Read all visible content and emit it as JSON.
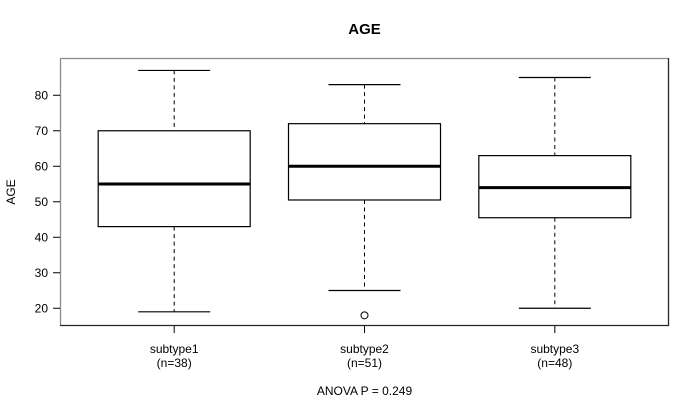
{
  "title": "AGE",
  "colors": {
    "background": "#ffffff",
    "frame_top_left": "#8a8a8a",
    "frame_bottom_right": "#262626",
    "line": "#000000",
    "box_fill": "#ffffff",
    "text": "#000000"
  },
  "chart_data": {
    "type": "boxplot",
    "title": "AGE",
    "ylabel": "AGE",
    "caption": "ANOVA P = 0.249",
    "ylim": [
      15,
      90.5
    ],
    "yticks": [
      20,
      30,
      40,
      50,
      60,
      70,
      80
    ],
    "grid": false,
    "groups": [
      {
        "label": "subtype1",
        "n_label": "(n=38)",
        "n": 38,
        "whisker_low": 19,
        "q1": 43,
        "median": 55,
        "q3": 70,
        "whisker_high": 87,
        "outliers": []
      },
      {
        "label": "subtype2",
        "n_label": "(n=51)",
        "n": 51,
        "whisker_low": 25,
        "q1": 50.5,
        "median": 60,
        "q3": 72,
        "whisker_high": 83,
        "outliers": [
          18
        ]
      },
      {
        "label": "subtype3",
        "n_label": "(n=48)",
        "n": 48,
        "whisker_low": 20,
        "q1": 45.5,
        "median": 54,
        "q3": 63,
        "whisker_high": 85,
        "outliers": []
      }
    ]
  }
}
